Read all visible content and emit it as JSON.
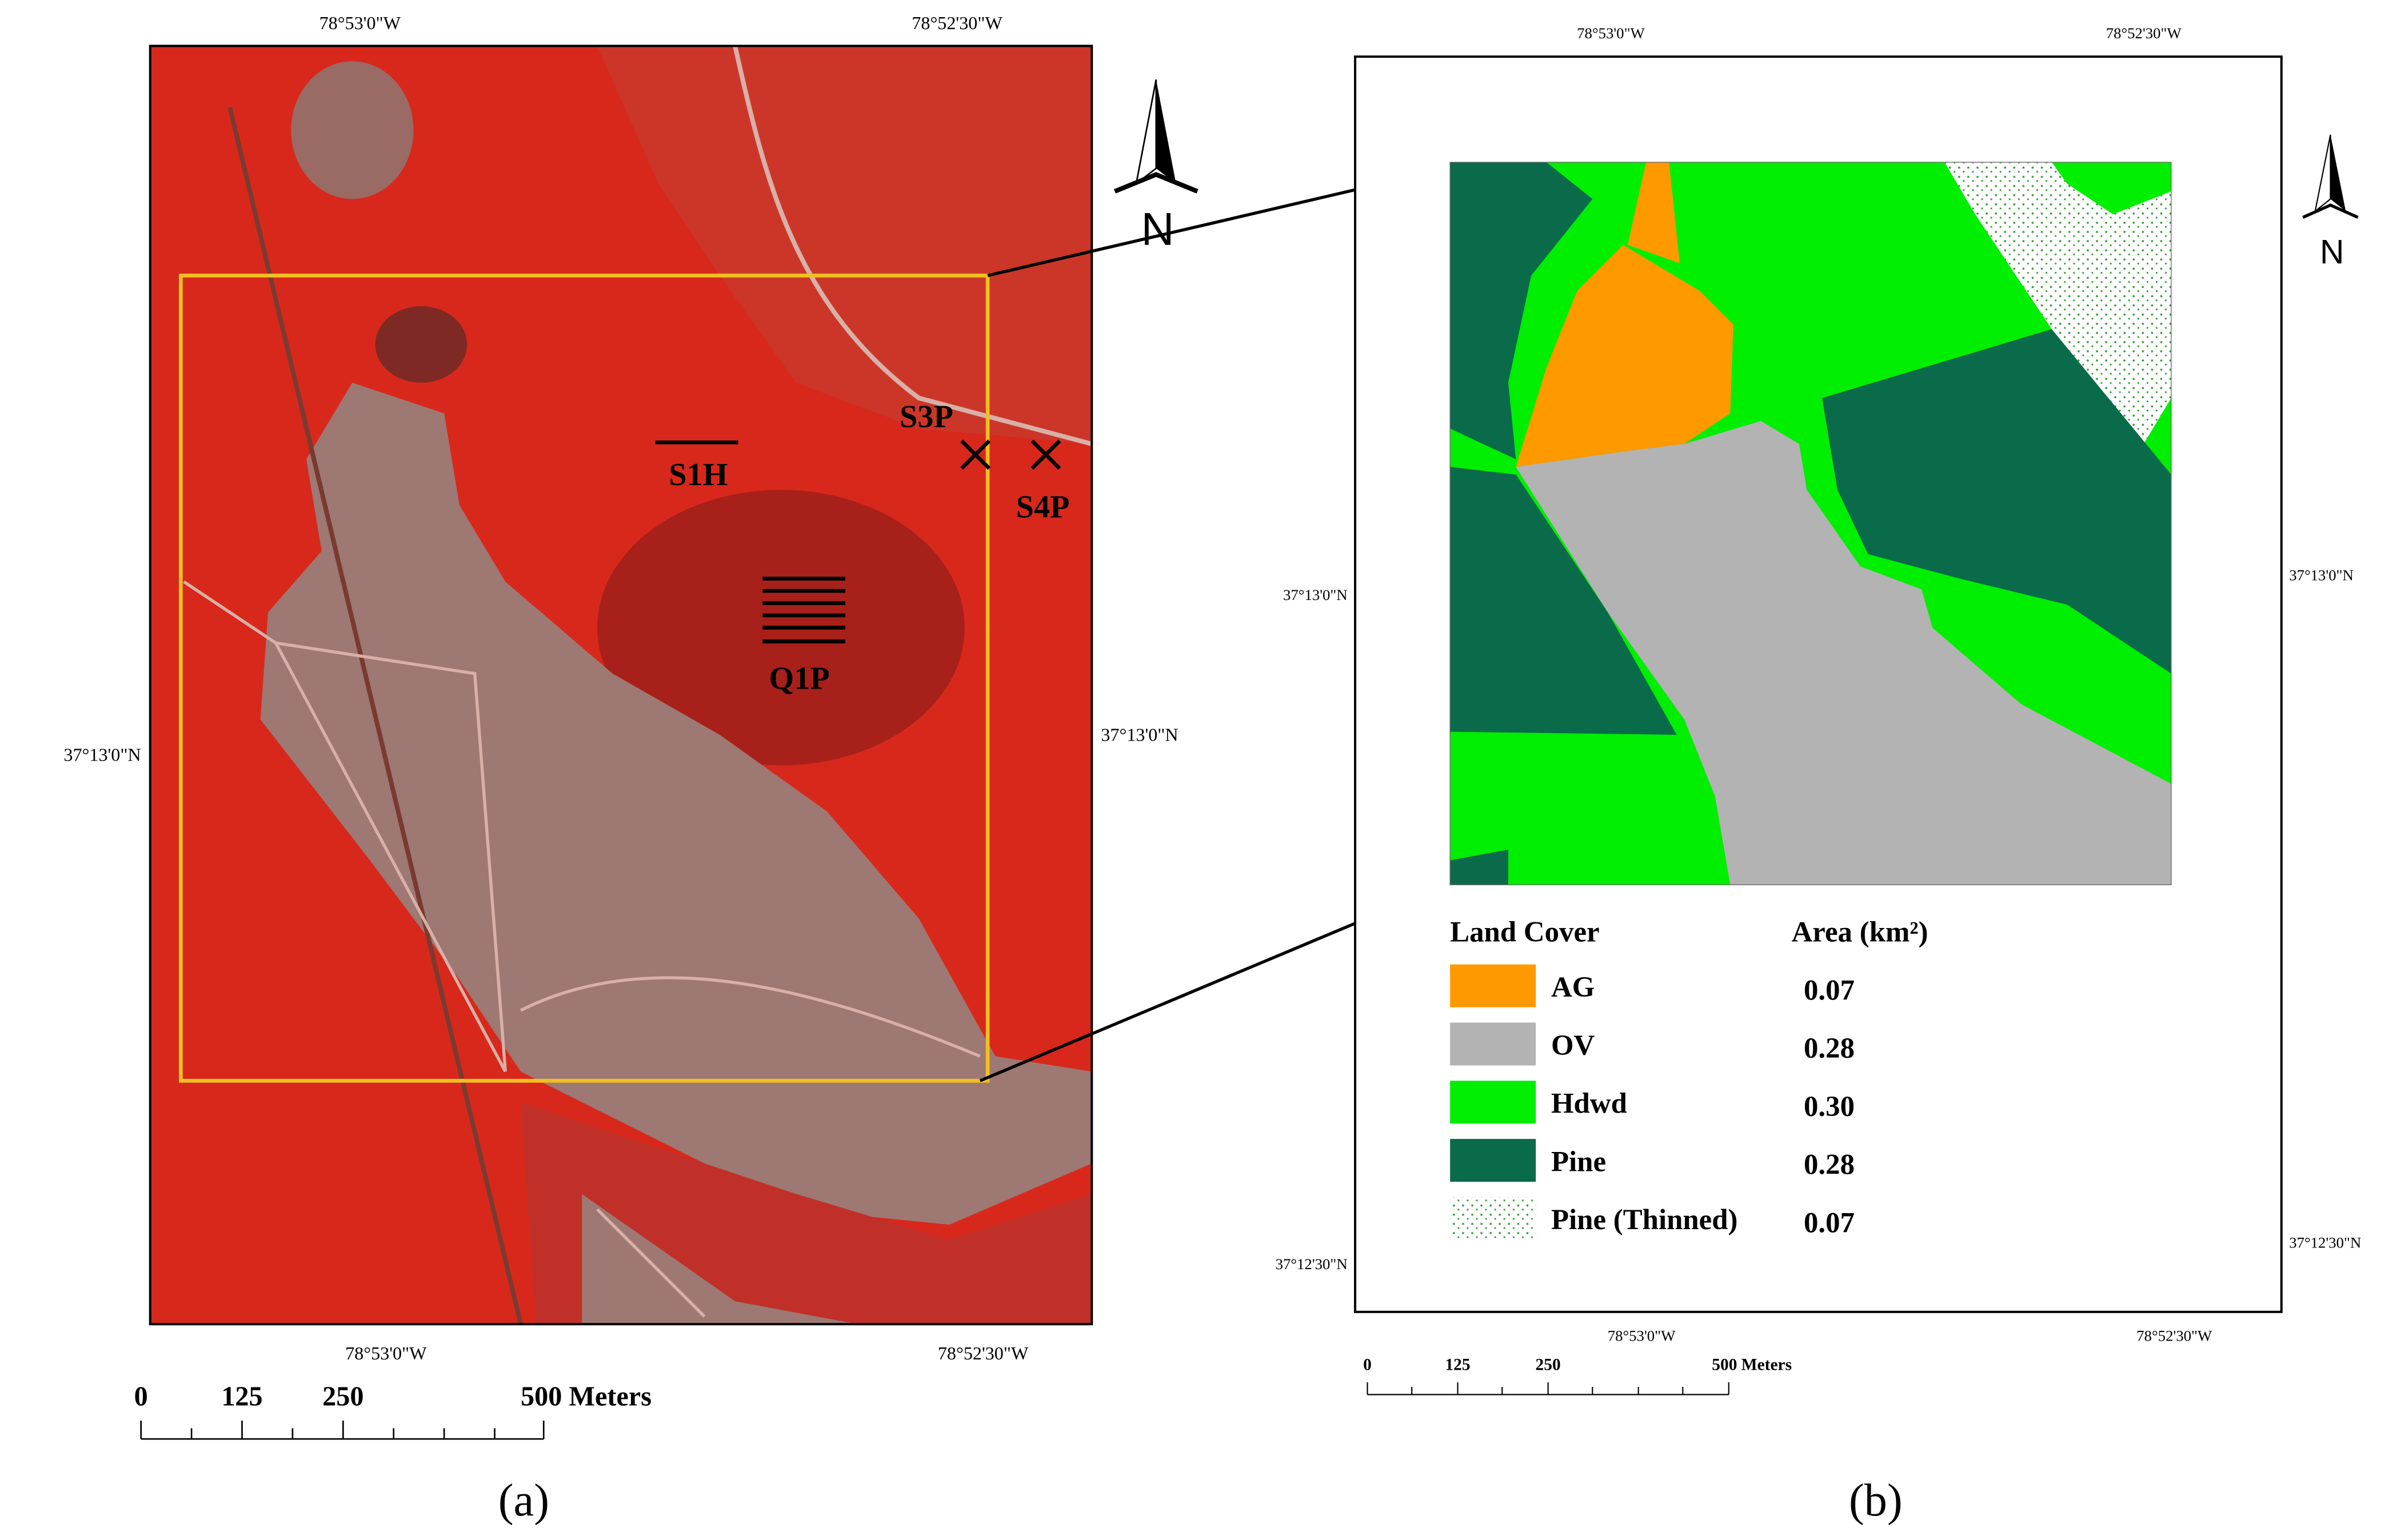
{
  "panel_a": {
    "top_coords": [
      "78°53'0\"W",
      "78°52'30\"W"
    ],
    "bottom_coords": [
      "78°53'0\"W",
      "78°52'30\"W"
    ],
    "left_coord": "37°13'0\"N",
    "right_coord": "37°13'0\"N",
    "sites": [
      "S1H",
      "S3P",
      "S4P",
      "Q1P"
    ],
    "north": "N",
    "scale_labels": [
      "0",
      "125",
      "250",
      "500 Meters"
    ],
    "caption": "(a)"
  },
  "panel_b": {
    "top_coords": [
      "78°53'0\"W",
      "78°52'30\"W"
    ],
    "bottom_coords": [
      "78°53'0\"W",
      "78°52'30\"W"
    ],
    "left_coords": [
      "37°13'0\"N",
      "37°12'30\"N"
    ],
    "right_coords": [
      "37°13'0\"N",
      "37°12'30\"N"
    ],
    "north": "N",
    "legend": {
      "header": [
        "Land Cover",
        "Area (km²)"
      ],
      "items": [
        {
          "name": "AG",
          "area": "0.07"
        },
        {
          "name": "OV",
          "area": "0.28"
        },
        {
          "name": "Hdwd",
          "area": "0.30"
        },
        {
          "name": "Pine",
          "area": "0.28"
        },
        {
          "name": "Pine (Thinned)",
          "area": "0.07"
        }
      ]
    },
    "scale_labels": [
      "0",
      "125",
      "250",
      "500 Meters"
    ],
    "caption": "(b)"
  }
}
